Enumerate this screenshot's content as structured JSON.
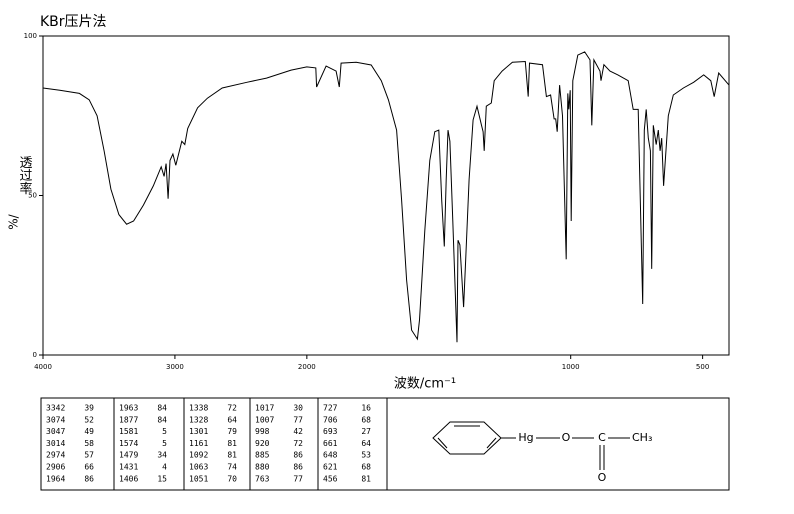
{
  "chart_data": {
    "type": "line",
    "title": "KBr压片法",
    "ylabel": "透过率",
    "ylabel_unit": "%/",
    "xlabel": "波数/cm⁻¹",
    "color": "#000000",
    "xlim": [
      4000,
      400
    ],
    "x_scale_break": 2000,
    "x_scale_ratio": 2,
    "xticks": [
      4000,
      3000,
      2000,
      1000,
      500
    ],
    "ylim": [
      0,
      100
    ],
    "yticks": [
      0,
      50,
      100
    ],
    "x": [
      4000,
      3873,
      3724,
      3650,
      3590,
      3537,
      3485,
      3425,
      3366,
      3313,
      3239,
      3164,
      3104,
      3082,
      3067,
      3052,
      3037,
      3015,
      2993,
      2978,
      2948,
      2925,
      2903,
      2828,
      2754,
      2642,
      2455,
      2306,
      2119,
      2000,
      1966,
      1963,
      1927,
      1889,
      1877,
      1870,
      1813,
      1756,
      1718,
      1691,
      1660,
      1641,
      1622,
      1603,
      1581,
      1573,
      1553,
      1534,
      1515,
      1500,
      1489,
      1479,
      1472,
      1465,
      1458,
      1447,
      1431,
      1427,
      1420,
      1406,
      1398,
      1385,
      1370,
      1355,
      1338,
      1332,
      1328,
      1320,
      1301,
      1290,
      1260,
      1221,
      1172,
      1161,
      1156,
      1107,
      1092,
      1076,
      1063,
      1057,
      1051,
      1042,
      1031,
      1017,
      1011,
      1007,
      1002,
      998,
      992,
      973,
      947,
      927,
      920,
      912,
      889,
      885,
      874,
      851,
      821,
      782,
      763,
      744,
      727,
      721,
      714,
      706,
      698,
      693,
      687,
      676,
      668,
      661,
      655,
      648,
      630,
      611,
      573,
      534,
      496,
      469,
      456,
      439,
      400
    ],
    "y": [
      83.7,
      83,
      82,
      80,
      75,
      64,
      52,
      44,
      41,
      42,
      47,
      53,
      59,
      56,
      60,
      49,
      61,
      63,
      59.5,
      62,
      67,
      66,
      71,
      77.5,
      80.5,
      83.7,
      85.5,
      86.8,
      89.3,
      90.3,
      90,
      84,
      90.6,
      89,
      84,
      91.5,
      91.8,
      90.9,
      86,
      80,
      70.5,
      48.6,
      23.5,
      7.8,
      5,
      11,
      39,
      61,
      70,
      70.5,
      48.6,
      34,
      55,
      70.5,
      67,
      42,
      4,
      36,
      34.5,
      15,
      30,
      55,
      73.7,
      78,
      72,
      70,
      64,
      78,
      79,
      86,
      89,
      91.8,
      92,
      81,
      91.5,
      91,
      81,
      81.5,
      74,
      74,
      70,
      84.6,
      75,
      30,
      82,
      77,
      83,
      42,
      86,
      94,
      95,
      92.5,
      72,
      92.5,
      89,
      86,
      91,
      89,
      87.8,
      86,
      77,
      77,
      16,
      70.5,
      77,
      68,
      64,
      27,
      72,
      66,
      70.5,
      64,
      68,
      53,
      75,
      81.5,
      83.7,
      85.5,
      87.8,
      86,
      81,
      88.4,
      84.6
    ],
    "peaks": [
      [
        3342,
        39
      ],
      [
        3074,
        52
      ],
      [
        3047,
        49
      ],
      [
        3014,
        58
      ],
      [
        2974,
        57
      ],
      [
        2906,
        66
      ],
      [
        1964,
        86
      ],
      [
        1963,
        84
      ],
      [
        1877,
        84
      ],
      [
        1581,
        5
      ],
      [
        1574,
        5
      ],
      [
        1479,
        34
      ],
      [
        1431,
        4
      ],
      [
        1406,
        15
      ],
      [
        1338,
        72
      ],
      [
        1328,
        64
      ],
      [
        1301,
        79
      ],
      [
        1161,
        81
      ],
      [
        1092,
        81
      ],
      [
        1063,
        74
      ],
      [
        1051,
        70
      ],
      [
        1017,
        30
      ],
      [
        1007,
        77
      ],
      [
        998,
        42
      ],
      [
        920,
        72
      ],
      [
        885,
        86
      ],
      [
        880,
        86
      ],
      [
        763,
        77
      ],
      [
        727,
        16
      ],
      [
        706,
        68
      ],
      [
        693,
        27
      ],
      [
        661,
        64
      ],
      [
        648,
        53
      ],
      [
        621,
        68
      ],
      [
        456,
        81
      ]
    ],
    "peaks_per_column": 7,
    "structure": {
      "hg": "Hg",
      "o1": "O",
      "c": "C",
      "ch3": "CH₃",
      "o2": "O"
    }
  }
}
